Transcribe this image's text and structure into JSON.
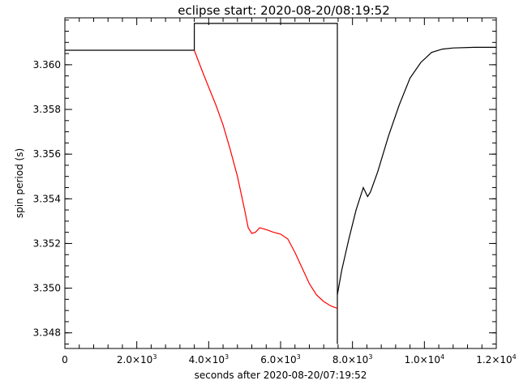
{
  "chart_data": {
    "type": "line",
    "title": "eclipse start: 2020-08-20/08:19:52",
    "xlabel": "seconds after 2020-08-20/07:19:52",
    "ylabel": "spin period (s)",
    "xlim": [
      0,
      12000
    ],
    "ylim": [
      3.3473,
      3.3621
    ],
    "x_ticks": [
      {
        "value": 0,
        "mant": "0",
        "exp": ""
      },
      {
        "value": 2000,
        "mant": "2.0×10",
        "exp": "3"
      },
      {
        "value": 4000,
        "mant": "4.0×10",
        "exp": "3"
      },
      {
        "value": 6000,
        "mant": "6.0×10",
        "exp": "3"
      },
      {
        "value": 8000,
        "mant": "8.0×10",
        "exp": "3"
      },
      {
        "value": 10000,
        "mant": "1.0×10",
        "exp": "4"
      },
      {
        "value": 12000,
        "mant": "1.2×10",
        "exp": "4"
      }
    ],
    "y_ticks": [
      "3.348",
      "3.350",
      "3.352",
      "3.354",
      "3.356",
      "3.358",
      "3.360"
    ],
    "grid": false,
    "colors": {
      "axes": "#000000",
      "eclipse_series": "#ff0000",
      "series": "#000000"
    },
    "series": [
      {
        "color": "#000000",
        "style": "line",
        "points": [
          [
            0,
            3.36065
          ],
          [
            3600,
            3.36065
          ],
          [
            3600,
            3.36185
          ],
          [
            7580,
            3.36185
          ],
          [
            7580,
            3.3475
          ]
        ]
      },
      {
        "color": "#ff0000",
        "style": "line",
        "points": [
          [
            3600,
            3.36065
          ],
          [
            3800,
            3.3598
          ],
          [
            4000,
            3.359
          ],
          [
            4200,
            3.3582
          ],
          [
            4400,
            3.3573
          ],
          [
            4600,
            3.3562
          ],
          [
            4800,
            3.355
          ],
          [
            5000,
            3.3535
          ],
          [
            5100,
            3.3527
          ],
          [
            5200,
            3.35245
          ],
          [
            5300,
            3.3525
          ],
          [
            5420,
            3.3527
          ],
          [
            5600,
            3.35262
          ],
          [
            5800,
            3.3525
          ],
          [
            6000,
            3.35242
          ],
          [
            6200,
            3.3522
          ],
          [
            6400,
            3.3516
          ],
          [
            6600,
            3.3509
          ],
          [
            6800,
            3.3502
          ],
          [
            7000,
            3.3497
          ],
          [
            7200,
            3.3494
          ],
          [
            7400,
            3.3492
          ],
          [
            7580,
            3.3491
          ]
        ]
      },
      {
        "color": "#000000",
        "style": "line",
        "points": [
          [
            7580,
            3.3497
          ],
          [
            7700,
            3.3508
          ],
          [
            7900,
            3.3522
          ],
          [
            8100,
            3.3535
          ],
          [
            8300,
            3.3545
          ],
          [
            8420,
            3.3541
          ],
          [
            8500,
            3.3543
          ],
          [
            8700,
            3.3552
          ],
          [
            9000,
            3.3568
          ],
          [
            9300,
            3.3582
          ],
          [
            9600,
            3.3594
          ],
          [
            9900,
            3.3601
          ],
          [
            10200,
            3.36055
          ],
          [
            10500,
            3.3607
          ],
          [
            10800,
            3.36075
          ],
          [
            11400,
            3.36078
          ],
          [
            12000,
            3.36078
          ]
        ]
      }
    ]
  }
}
